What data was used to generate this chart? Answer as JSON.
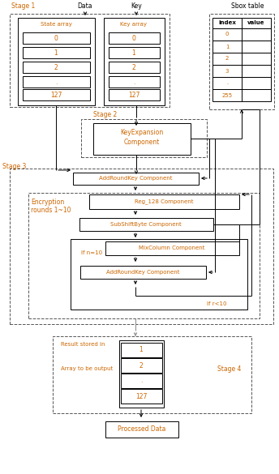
{
  "bg_color": "#ffffff",
  "orange": "#CC6600",
  "black": "#000000",
  "gray": "#888888",
  "stage1_label": "Stage 1",
  "stage2_label": "Stage 2",
  "stage3_label": "Stage 3",
  "stage4_label": "Stage 4",
  "data_label": "Data",
  "key_label": "Key",
  "sbox_label": "Sbox table",
  "state_array_label": "State array",
  "key_array_label": "Key array",
  "keyexp_label1": "KeyExpansion",
  "keyexp_label2": "Component",
  "addroundkey1_label": "AddRoundKey Component",
  "enc_label1": "Encryption",
  "enc_label2": "rounds 1~10",
  "reg128_label": "Reg_128 Component",
  "subshift_label": "SubShiftByte Component",
  "mixcol_label": "MixColumn Component",
  "if_n10_label": "If n=10",
  "addroundkey2_label": "AddRoundKey Component",
  "ifr10_label": "If r<10",
  "result_label1": "Result stored in",
  "result_label2": "Array to be output",
  "output_rows": [
    "1",
    "2",
    ".",
    "127"
  ],
  "state_rows": [
    "0",
    "1",
    "2",
    ".",
    "127"
  ],
  "key_rows": [
    "0",
    "1",
    "2",
    ".",
    "127"
  ],
  "sbox_rows": [
    "0",
    "1",
    "2",
    "3",
    ".",
    "255"
  ],
  "index_label": "index",
  "value_label": "value",
  "processed_label": "Processed Data"
}
